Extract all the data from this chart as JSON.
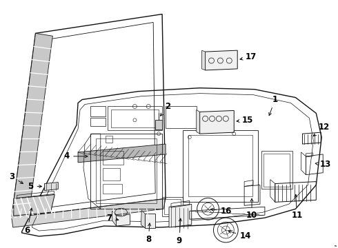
{
  "bg_color": "#ffffff",
  "line_color": "#111111",
  "fig_width": 4.9,
  "fig_height": 3.6,
  "dpi": 100
}
